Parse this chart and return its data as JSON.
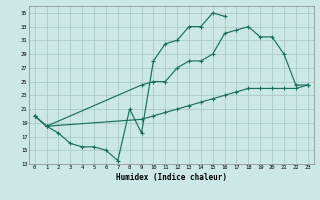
{
  "xlabel": "Humidex (Indice chaleur)",
  "bg_color": "#cce8e4",
  "grid_color": "#aacccc",
  "line_color": "#1a7060",
  "xlim": [
    -0.5,
    23.5
  ],
  "ylim": [
    13,
    36
  ],
  "yticks": [
    13,
    15,
    17,
    19,
    21,
    23,
    25,
    27,
    29,
    31,
    33,
    35
  ],
  "xticks": [
    0,
    1,
    2,
    3,
    4,
    5,
    6,
    7,
    8,
    9,
    10,
    11,
    12,
    13,
    14,
    15,
    16,
    17,
    18,
    19,
    20,
    21,
    22,
    23
  ],
  "line1_x": [
    0,
    1,
    2,
    3,
    4,
    5,
    6,
    7,
    8,
    9,
    10,
    11,
    12,
    13,
    14,
    15,
    16
  ],
  "line1_y": [
    20,
    18.5,
    17.5,
    16,
    15.5,
    15.5,
    15,
    13.5,
    21,
    17.5,
    28,
    30.5,
    31,
    33,
    33,
    35,
    34.5
  ],
  "line2_x": [
    0,
    1,
    9,
    10,
    11,
    12,
    13,
    14,
    15,
    16,
    17,
    18,
    19,
    20,
    21,
    22,
    23
  ],
  "line2_y": [
    20,
    18.5,
    24.5,
    25,
    25,
    27,
    28,
    28,
    29,
    32,
    32.5,
    33,
    31.5,
    31.5,
    29,
    24.5,
    24.5
  ],
  "line3_x": [
    0,
    1,
    9,
    10,
    11,
    12,
    13,
    14,
    15,
    16,
    17,
    18,
    19,
    20,
    21,
    22,
    23
  ],
  "line3_y": [
    20,
    18.5,
    19.5,
    20,
    20.5,
    21,
    21.5,
    22,
    22.5,
    23,
    23.5,
    24,
    24,
    24,
    24,
    24,
    24.5
  ]
}
